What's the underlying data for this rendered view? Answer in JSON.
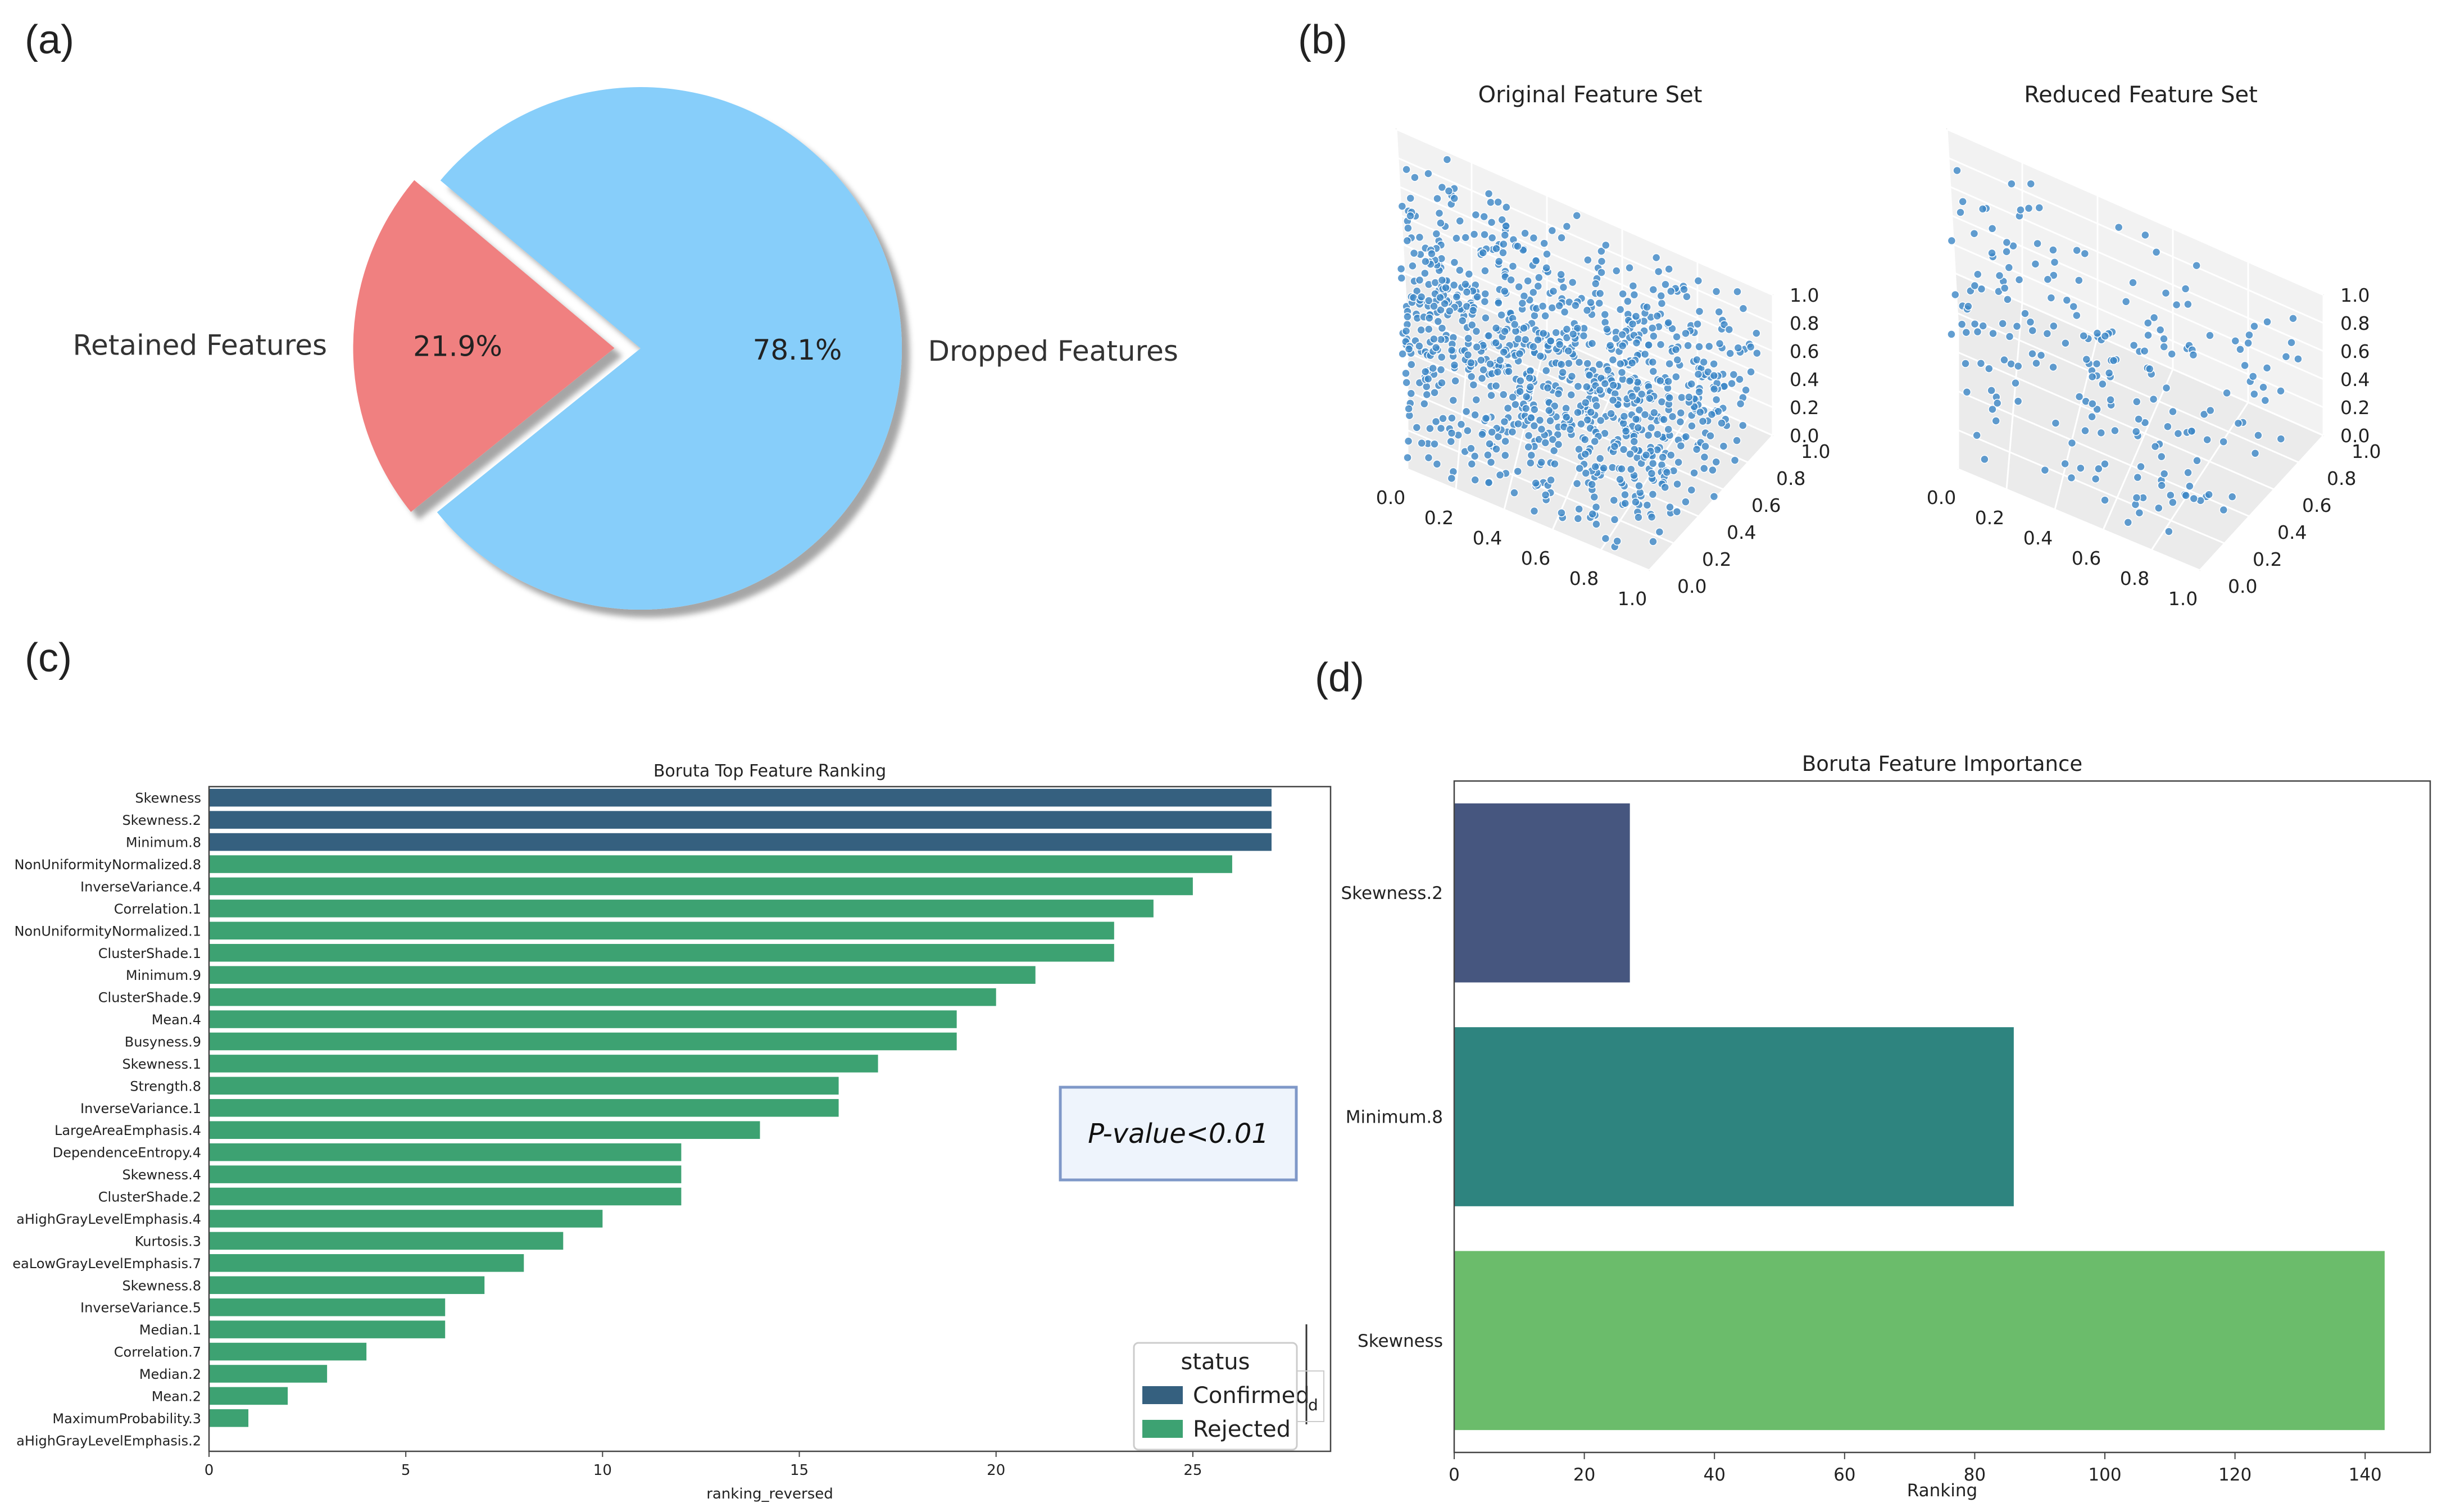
{
  "panel_labels": {
    "a": "(a)",
    "b": "(b)",
    "c": "(c)",
    "d": "(d)"
  },
  "chart_data": [
    {
      "id": "a",
      "type": "pie",
      "labels": [
        "Retained Features",
        "Dropped Features"
      ],
      "values": [
        21.9,
        78.1
      ],
      "value_labels": [
        "21.9%",
        "78.1%"
      ],
      "colors": [
        "#F08080",
        "#87CEFA"
      ],
      "explode": [
        true,
        false
      ]
    },
    {
      "id": "b",
      "type": "scatter",
      "subtype": "3d-scatter",
      "subplots": [
        {
          "title": "Original Feature Set",
          "n_points": 1000
        },
        {
          "title": "Reduced Feature Set",
          "n_points": 220
        }
      ],
      "axis_range": [
        0,
        1
      ],
      "x_ticks": [
        "0.0",
        "0.2",
        "0.4",
        "0.6",
        "0.8",
        "1.0"
      ],
      "y_ticks": [
        "0.0",
        "0.2",
        "0.4",
        "0.6",
        "0.8",
        "1.0"
      ],
      "z_ticks": [
        "0.0",
        "0.2",
        "0.4",
        "0.6",
        "0.8",
        "1.0"
      ],
      "point_color": "#3B86C6"
    },
    {
      "id": "c",
      "type": "bar",
      "orientation": "horizontal",
      "title": "Boruta Top Feature Ranking",
      "xlabel": "ranking_reversed",
      "xlim": [
        0,
        28.5
      ],
      "xticks": [
        0,
        5,
        10,
        15,
        20,
        25
      ],
      "categories": [
        "Skewness",
        "Skewness.2",
        "Minimum.8",
        "NonUniformityNormalized.8",
        "InverseVariance.4",
        "Correlation.1",
        "NonUniformityNormalized.1",
        "ClusterShade.1",
        "Minimum.9",
        "ClusterShade.9",
        "Mean.4",
        "Busyness.9",
        "Skewness.1",
        "Strength.8",
        "InverseVariance.1",
        "LargeAreaEmphasis.4",
        "DependenceEntropy.4",
        "Skewness.4",
        "ClusterShade.2",
        "aHighGrayLevelEmphasis.4",
        "Kurtosis.3",
        "eaLowGrayLevelEmphasis.7",
        "Skewness.8",
        "InverseVariance.5",
        "Median.1",
        "Correlation.7",
        "Median.2",
        "Mean.2",
        "MaximumProbability.3",
        "aHighGrayLevelEmphasis.2"
      ],
      "values": [
        27,
        27,
        27,
        26,
        25,
        24,
        23,
        23,
        21,
        20,
        19,
        19,
        17,
        16,
        16,
        14,
        12,
        12,
        12,
        10,
        9,
        8,
        7,
        6,
        6,
        4,
        3,
        2,
        1,
        0
      ],
      "status": [
        "Confirmed",
        "Confirmed",
        "Confirmed",
        "Rejected",
        "Rejected",
        "Rejected",
        "Rejected",
        "Rejected",
        "Rejected",
        "Rejected",
        "Rejected",
        "Rejected",
        "Rejected",
        "Rejected",
        "Rejected",
        "Rejected",
        "Rejected",
        "Rejected",
        "Rejected",
        "Rejected",
        "Rejected",
        "Rejected",
        "Rejected",
        "Rejected",
        "Rejected",
        "Rejected",
        "Rejected",
        "Rejected",
        "Rejected",
        "Rejected"
      ],
      "legend": {
        "title": "status",
        "entries": [
          {
            "label": "Confirmed",
            "color": "#35607F"
          },
          {
            "label": "Rejected",
            "color": "#3DA272"
          }
        ],
        "stray_text": "d"
      },
      "annotation": "P-value<0.01"
    },
    {
      "id": "d",
      "type": "bar",
      "orientation": "horizontal",
      "title": "Boruta Feature Importance",
      "xlabel": "Ranking",
      "xlim": [
        0,
        150
      ],
      "xticks": [
        0,
        20,
        40,
        60,
        80,
        100,
        120,
        140
      ],
      "categories": [
        "Skewness.2",
        "Minimum.8",
        "Skewness"
      ],
      "values": [
        27,
        86,
        143
      ],
      "colors": [
        "#46567F",
        "#2E847F",
        "#6BBC6B"
      ]
    }
  ]
}
